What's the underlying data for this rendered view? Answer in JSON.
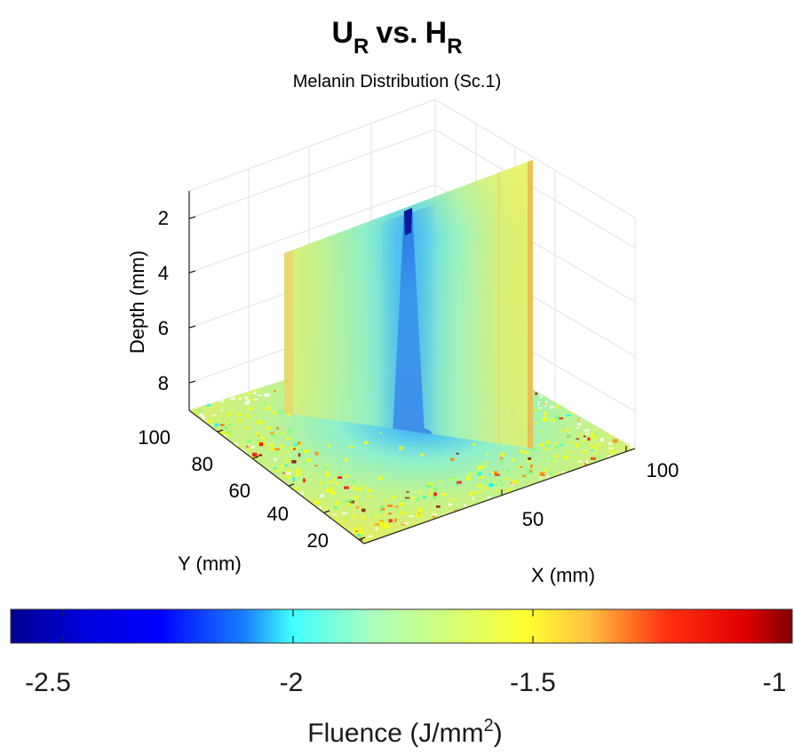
{
  "chart_data": {
    "type": "heatmap",
    "view": "3d-slices",
    "title": {
      "main": "U",
      "main_sub": "R",
      "vs": "vs.",
      "second": "H",
      "second_sub": "R"
    },
    "subtitle": "Melanin Distribution (Sc.1)",
    "axes": {
      "x": {
        "label": "X (mm)",
        "ticks": [
          "50",
          "100"
        ]
      },
      "y": {
        "label": "Y (mm)",
        "ticks": [
          "20",
          "40",
          "60",
          "80",
          "100"
        ]
      },
      "z": {
        "label": "Depth (mm)",
        "ticks": [
          "2",
          "4",
          "6",
          "8"
        ],
        "reversed": true
      }
    },
    "colorbar": {
      "label": "Fluence (J/mm",
      "label_sup": "2",
      "label_end": ")",
      "ticks": [
        "-2.5",
        "-2",
        "-1.5",
        "-1"
      ],
      "range": [
        -2.7,
        -1.0
      ],
      "colormap": "jet",
      "stops": [
        "#00008f",
        "#0000ff",
        "#0080ff",
        "#00ffff",
        "#80ff80",
        "#ffff00",
        "#ff8000",
        "#ff0000",
        "#800000"
      ]
    },
    "grid": true
  }
}
